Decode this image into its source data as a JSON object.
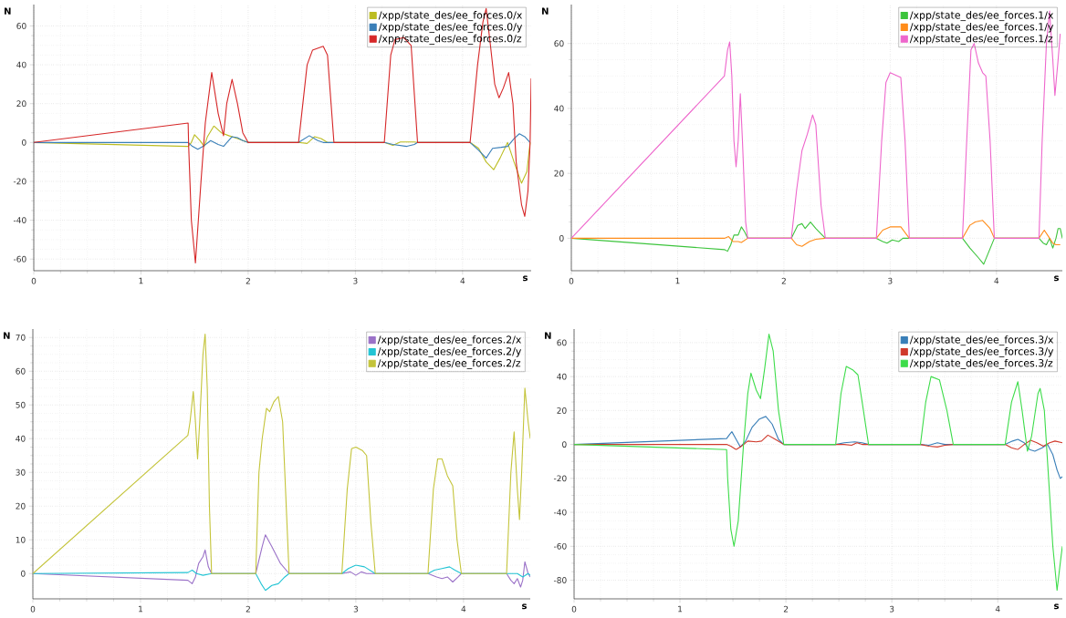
{
  "chart_data": [
    {
      "type": "line",
      "xlabel": "s",
      "ylabel": "N",
      "xlim": [
        0,
        4.64
      ],
      "ylim": [
        -66,
        71
      ],
      "xticks": [
        0,
        1,
        2,
        3,
        4
      ],
      "yticks": [
        -60,
        -40,
        -20,
        0,
        20,
        40,
        60
      ],
      "grid": true,
      "legend": "top right",
      "series": [
        {
          "name": "/xpp/state_des/ee_forces.0/x",
          "color": "#bcbd22",
          "x": [
            0,
            1.44,
            1.47,
            1.5,
            1.55,
            1.59,
            1.62,
            1.68,
            1.75,
            1.82,
            1.9,
            2.0,
            2.47,
            2.55,
            2.62,
            2.68,
            2.74,
            2.8,
            3.27,
            3.35,
            3.42,
            3.55,
            3.58,
            4.07,
            4.15,
            4.22,
            4.29,
            4.35,
            4.42,
            4.48,
            4.55,
            4.6,
            4.63
          ],
          "values": [
            0,
            -2,
            0,
            4,
            1,
            -2,
            3,
            8.5,
            5,
            3.5,
            2,
            0,
            0,
            -0.5,
            3,
            2,
            0,
            0,
            0,
            -1.5,
            0.3,
            0.3,
            0,
            0,
            -3,
            -10,
            -14,
            -8,
            0,
            -10,
            -21,
            -15,
            0
          ]
        },
        {
          "name": "/xpp/state_des/ee_forces.0/y",
          "color": "#3a7fb8",
          "x": [
            0,
            1.44,
            1.48,
            1.53,
            1.58,
            1.65,
            1.72,
            1.77,
            1.85,
            1.9,
            1.95,
            2.0,
            2.47,
            2.57,
            2.65,
            2.7,
            2.8,
            3.27,
            3.35,
            3.48,
            3.55,
            3.58,
            4.07,
            4.15,
            4.22,
            4.28,
            4.36,
            4.42,
            4.48,
            4.53,
            4.58,
            4.63
          ],
          "values": [
            0,
            0,
            -2,
            -3.5,
            -2,
            1,
            -1,
            -2,
            3,
            2.5,
            1,
            0,
            0,
            3.5,
            1,
            0,
            0,
            0,
            -1,
            -2,
            -1,
            0,
            0,
            -4,
            -8,
            -3,
            -2.5,
            -2,
            2,
            4.5,
            3,
            0
          ]
        },
        {
          "name": "/xpp/state_des/ee_forces.0/z",
          "color": "#d62728",
          "x": [
            0,
            1.44,
            1.445,
            1.47,
            1.508,
            1.56,
            1.6,
            1.66,
            1.72,
            1.77,
            1.8,
            1.85,
            1.9,
            1.95,
            2.0,
            2.47,
            2.55,
            2.6,
            2.7,
            2.74,
            2.8,
            3.27,
            3.33,
            3.37,
            3.45,
            3.52,
            3.58,
            4.07,
            4.14,
            4.19,
            4.22,
            4.26,
            4.3,
            4.34,
            4.38,
            4.43,
            4.47,
            4.5,
            4.55,
            4.58,
            4.61,
            4.63,
            4.64
          ],
          "values": [
            0,
            10,
            -2,
            -40,
            -62,
            -20,
            10,
            36,
            15,
            3.5,
            20,
            32.5,
            20,
            5,
            0,
            0,
            40,
            47.5,
            49.5,
            45,
            0,
            0,
            45,
            53,
            54,
            50,
            0,
            0,
            40,
            62,
            69,
            50,
            30,
            23,
            28,
            36,
            20,
            -10,
            -32,
            -38,
            -25,
            0,
            33
          ]
        }
      ]
    },
    {
      "type": "line",
      "xlabel": "s",
      "ylabel": "N",
      "xlim": [
        0,
        4.62
      ],
      "ylim": [
        -10,
        72
      ],
      "xticks": [
        0,
        1,
        2,
        3,
        4
      ],
      "yticks": [
        0,
        20,
        40,
        60
      ],
      "grid": true,
      "legend": "top right",
      "series": [
        {
          "name": "/xpp/state_des/ee_forces.1/x",
          "color": "#3cc43c",
          "x": [
            0,
            1.44,
            1.47,
            1.5,
            1.53,
            1.57,
            1.6,
            1.63,
            1.66,
            2.07,
            2.13,
            2.17,
            2.2,
            2.25,
            2.3,
            2.39,
            2.87,
            2.93,
            2.97,
            3.02,
            3.08,
            3.12,
            3.18,
            3.68,
            3.75,
            3.83,
            3.88,
            3.93,
            3.98,
            4.4,
            4.44,
            4.47,
            4.5,
            4.53,
            4.56,
            4.58,
            4.6,
            4.62
          ],
          "values": [
            0,
            -3.5,
            -4,
            -2,
            1,
            1,
            3.5,
            2,
            0,
            0,
            4,
            4.5,
            3,
            5,
            3,
            0,
            0,
            -1,
            -1.5,
            -0.5,
            -1,
            0,
            0,
            0,
            -3,
            -6,
            -8,
            -4,
            0,
            0,
            -1.5,
            -2,
            0,
            -3,
            0,
            3,
            3,
            0
          ]
        },
        {
          "name": "/xpp/state_des/ee_forces.1/y",
          "color": "#ff8c1a",
          "x": [
            0,
            1.44,
            1.48,
            1.52,
            1.57,
            1.6,
            1.66,
            2.07,
            2.12,
            2.17,
            2.24,
            2.3,
            2.39,
            2.87,
            2.93,
            3.0,
            3.1,
            3.18,
            3.68,
            3.75,
            3.8,
            3.87,
            3.94,
            3.98,
            4.4,
            4.45,
            4.5,
            4.53,
            4.56,
            4.6
          ],
          "values": [
            0,
            0,
            0.5,
            -1,
            -1,
            -1.3,
            0,
            0,
            -2,
            -2.5,
            -1,
            -0.3,
            0,
            0,
            2.5,
            3.5,
            3.5,
            0,
            0,
            4,
            5,
            5.5,
            3,
            0,
            0,
            2.5,
            0,
            -1.5,
            -2,
            -2
          ]
        },
        {
          "name": "/xpp/state_des/ee_forces.1/z",
          "color": "#ee66cc",
          "x": [
            0,
            1.44,
            1.47,
            1.49,
            1.51,
            1.53,
            1.55,
            1.57,
            1.59,
            1.61,
            1.64,
            1.66,
            2.07,
            2.12,
            2.17,
            2.22,
            2.27,
            2.3,
            2.35,
            2.39,
            2.87,
            2.92,
            2.96,
            3.0,
            3.1,
            3.14,
            3.18,
            3.68,
            3.72,
            3.76,
            3.79,
            3.83,
            3.87,
            3.9,
            3.94,
            3.98,
            4.4,
            4.43,
            4.47,
            4.5,
            4.53,
            4.55,
            4.58,
            4.6
          ],
          "values": [
            0,
            50,
            58,
            60.5,
            50,
            30,
            22,
            30,
            44.5,
            30,
            5,
            0,
            0,
            15,
            27,
            32,
            38,
            35,
            10,
            0,
            0,
            30,
            48,
            51,
            49.5,
            30,
            0,
            0,
            30,
            58,
            60,
            54,
            51,
            50,
            30,
            0,
            0,
            30,
            60,
            70,
            55,
            44,
            55,
            63
          ]
        }
      ]
    },
    {
      "type": "line",
      "xlabel": "s",
      "ylabel": "N",
      "xlim": [
        0,
        4.62
      ],
      "ylim": [
        -7.5,
        72.5
      ],
      "xticks": [
        0,
        1,
        2,
        3,
        4
      ],
      "yticks": [
        0,
        10,
        20,
        30,
        40,
        50,
        60,
        70
      ],
      "grid": true,
      "legend": "top right",
      "series": [
        {
          "name": "/xpp/state_des/ee_forces.2/x",
          "color": "#9b72c8",
          "x": [
            0,
            1.44,
            1.48,
            1.51,
            1.54,
            1.58,
            1.6,
            1.63,
            1.66,
            2.07,
            2.13,
            2.16,
            2.22,
            2.3,
            2.38,
            2.87,
            2.95,
            3.0,
            3.05,
            3.1,
            3.18,
            3.67,
            3.75,
            3.8,
            3.85,
            3.9,
            3.95,
            3.98,
            4.4,
            4.44,
            4.47,
            4.5,
            4.53,
            4.55,
            4.57,
            4.6,
            4.62
          ],
          "values": [
            0,
            -2,
            -3,
            -1,
            3,
            5,
            7,
            2,
            0,
            0,
            8,
            11.5,
            8,
            3,
            0,
            0,
            0.5,
            -0.5,
            0.5,
            0,
            0,
            0,
            -1,
            -1.5,
            -1,
            -2.5,
            -1,
            0,
            0,
            -2,
            -3,
            -1.5,
            -4,
            -2,
            3.5,
            0,
            -1
          ]
        },
        {
          "name": "/xpp/state_des/ee_forces.2/y",
          "color": "#22c4d4",
          "x": [
            0,
            1.44,
            1.48,
            1.52,
            1.58,
            1.66,
            2.07,
            2.12,
            2.16,
            2.22,
            2.28,
            2.34,
            2.38,
            2.87,
            2.93,
            3.0,
            3.08,
            3.18,
            3.67,
            3.73,
            3.8,
            3.87,
            3.92,
            3.98,
            4.4,
            4.5,
            4.55,
            4.6,
            4.62
          ],
          "values": [
            0,
            0.3,
            1,
            0,
            -0.5,
            0,
            0,
            -3,
            -5,
            -3.5,
            -3,
            -1,
            0,
            0,
            1.5,
            2.5,
            2,
            0,
            0,
            1,
            1.5,
            2,
            1,
            0,
            0,
            0,
            -1,
            0,
            -0.5
          ]
        },
        {
          "name": "/xpp/state_des/ee_forces.2/z",
          "color": "#c4c43a",
          "x": [
            0,
            1.44,
            1.46,
            1.49,
            1.51,
            1.53,
            1.55,
            1.58,
            1.6,
            1.62,
            1.64,
            1.66,
            2.07,
            2.1,
            2.13,
            2.17,
            2.2,
            2.24,
            2.28,
            2.32,
            2.36,
            2.38,
            2.87,
            2.92,
            2.96,
            3.0,
            3.06,
            3.1,
            3.14,
            3.18,
            3.67,
            3.72,
            3.76,
            3.8,
            3.85,
            3.9,
            3.94,
            3.98,
            4.4,
            4.44,
            4.47,
            4.5,
            4.52,
            4.54,
            4.57,
            4.6,
            4.62
          ],
          "values": [
            0,
            41,
            45,
            54,
            45,
            34,
            45,
            65,
            71,
            55,
            20,
            0,
            0,
            30,
            40,
            49,
            48,
            51,
            52.5,
            45,
            15,
            0,
            0,
            25,
            37,
            37.5,
            36.5,
            35,
            15,
            0,
            0,
            25,
            34,
            34,
            29,
            26,
            10,
            0,
            0,
            30,
            42,
            25,
            16,
            30,
            55,
            45,
            40
          ]
        }
      ]
    },
    {
      "type": "line",
      "xlabel": "s",
      "ylabel": "N",
      "xlim": [
        0,
        4.61
      ],
      "ylim": [
        -91,
        68
      ],
      "xticks": [
        0,
        1,
        2,
        3,
        4
      ],
      "yticks": [
        -80,
        -60,
        -40,
        -20,
        0,
        20,
        40,
        60
      ],
      "grid": true,
      "legend": "top right",
      "series": [
        {
          "name": "/xpp/state_des/ee_forces.3/x",
          "color": "#3a7fb8",
          "x": [
            0,
            1.44,
            1.47,
            1.49,
            1.53,
            1.57,
            1.62,
            1.68,
            1.75,
            1.81,
            1.87,
            1.93,
            1.98,
            2.47,
            2.55,
            2.65,
            2.72,
            2.78,
            3.27,
            3.35,
            3.43,
            3.5,
            3.58,
            4.07,
            4.14,
            4.19,
            4.25,
            4.3,
            4.35,
            4.42,
            4.47,
            4.52,
            4.56,
            4.59,
            4.61
          ],
          "values": [
            0,
            3.5,
            6,
            7.5,
            3,
            -1.5,
            2,
            10,
            15,
            16.5,
            12,
            3,
            0,
            0,
            1,
            1.5,
            1,
            0,
            0,
            -0.5,
            1,
            0,
            0,
            0,
            2,
            3,
            1,
            -3,
            -4,
            -2,
            0,
            -6,
            -15,
            -20,
            -19
          ]
        },
        {
          "name": "/xpp/state_des/ee_forces.3/y",
          "color": "#d03a2c",
          "x": [
            0,
            1.44,
            1.48,
            1.53,
            1.58,
            1.64,
            1.72,
            1.77,
            1.83,
            1.9,
            1.98,
            2.47,
            2.55,
            2.62,
            2.67,
            2.72,
            2.78,
            3.27,
            3.35,
            3.43,
            3.5,
            3.58,
            4.07,
            4.13,
            4.19,
            4.25,
            4.31,
            4.37,
            4.43,
            4.49,
            4.54,
            4.61
          ],
          "values": [
            0,
            0,
            -1,
            -3,
            -1,
            2,
            1.5,
            2,
            5.5,
            3,
            0,
            0,
            0,
            -0.5,
            1,
            0,
            0,
            0,
            -1,
            -1.5,
            -0.5,
            0,
            0,
            -2,
            -3,
            0,
            2.5,
            1,
            -1,
            1,
            2,
            1
          ]
        },
        {
          "name": "/xpp/state_des/ee_forces.3/z",
          "color": "#3ddc4a",
          "x": [
            0,
            1.44,
            1.45,
            1.48,
            1.51,
            1.55,
            1.6,
            1.64,
            1.67,
            1.72,
            1.76,
            1.8,
            1.84,
            1.88,
            1.93,
            1.98,
            2.47,
            2.52,
            2.57,
            2.63,
            2.68,
            2.72,
            2.78,
            3.27,
            3.32,
            3.37,
            3.45,
            3.52,
            3.58,
            4.07,
            4.13,
            4.19,
            4.23,
            4.28,
            4.32,
            4.38,
            4.4,
            4.44,
            4.48,
            4.52,
            4.56,
            4.59,
            4.61
          ],
          "values": [
            0,
            -3,
            -20,
            -50,
            -60,
            -45,
            0,
            30,
            42,
            32,
            27,
            45,
            65,
            55,
            20,
            0,
            0,
            30,
            46,
            44,
            41,
            25,
            0,
            0,
            25,
            40,
            38,
            20,
            0,
            0,
            25,
            37,
            20,
            -4,
            5,
            30,
            33,
            20,
            -20,
            -60,
            -86,
            -70,
            -60
          ]
        }
      ]
    }
  ]
}
